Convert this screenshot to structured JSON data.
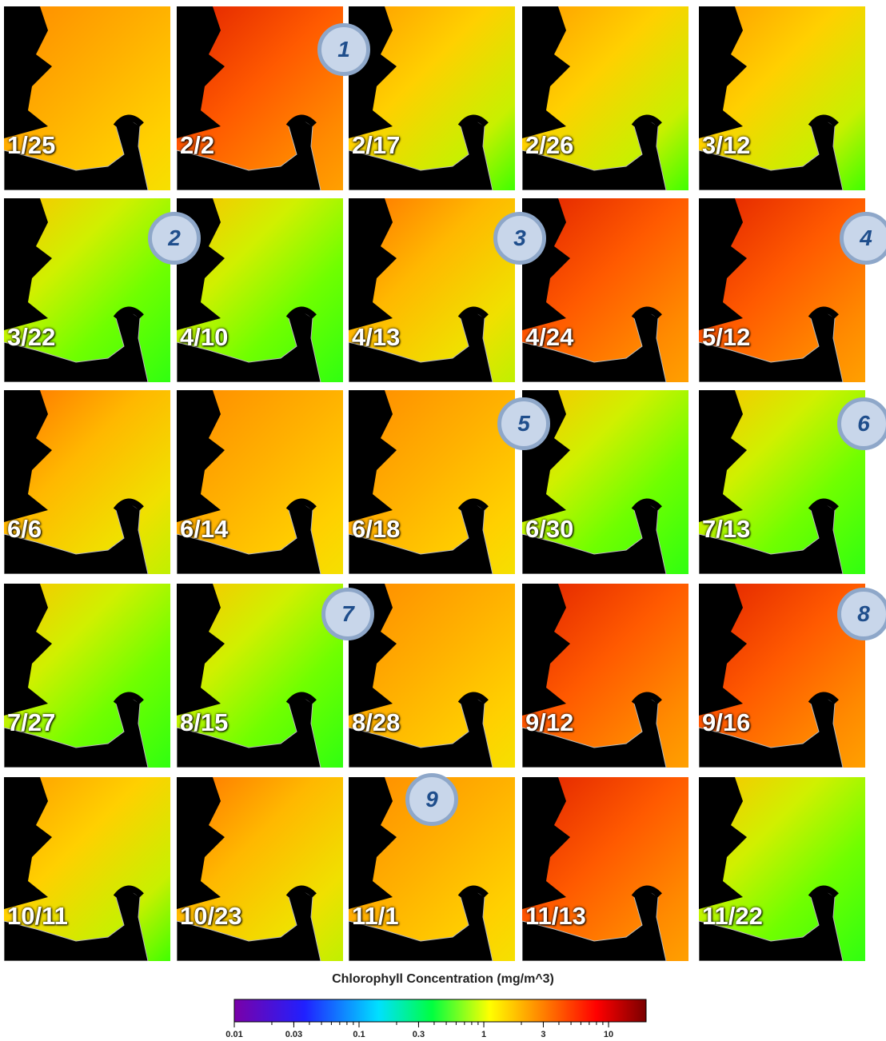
{
  "panels": [
    "1/25",
    "2/2",
    "2/17",
    "2/26",
    "3/12",
    "3/22",
    "4/10",
    "4/13",
    "4/24",
    "5/12",
    "6/6",
    "6/14",
    "6/18",
    "6/30",
    "7/13",
    "7/27",
    "8/15",
    "8/28",
    "9/12",
    "9/16",
    "10/11",
    "10/23",
    "11/1",
    "11/13",
    "11/22"
  ],
  "markers": [
    "1",
    "2",
    "3",
    "4",
    "5",
    "6",
    "7",
    "8",
    "9"
  ],
  "colorbar": {
    "title": "Chlorophyll Concentration (mg/m^3)",
    "log": true,
    "lim": [
      0.01,
      20
    ],
    "ticks": [
      0.01,
      0.03,
      0.1,
      0.3,
      1,
      3,
      10
    ]
  }
}
